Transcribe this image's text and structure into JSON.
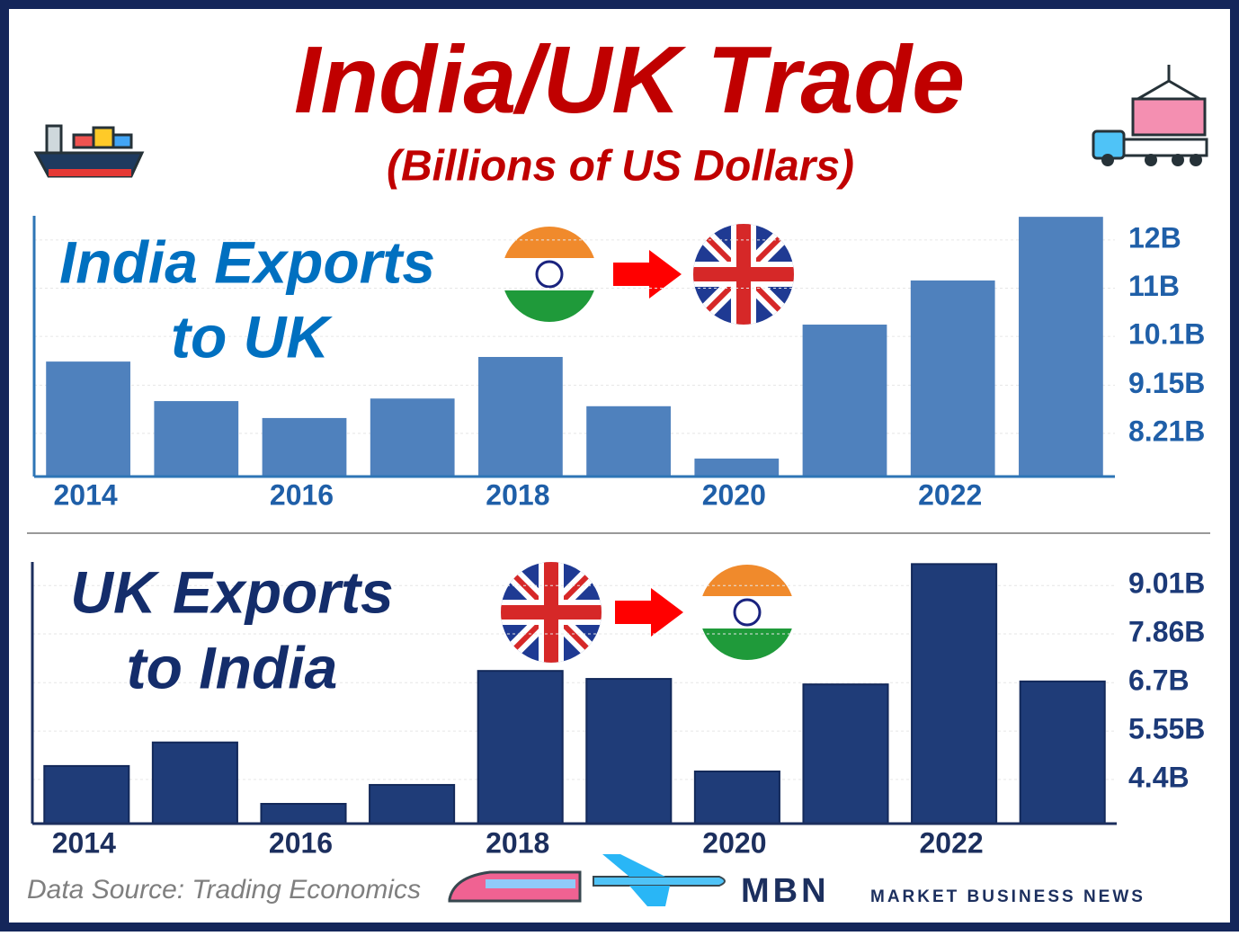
{
  "title": "India/UK Trade",
  "subtitle": "(Billions of US Dollars)",
  "chart_data": [
    {
      "type": "bar",
      "title_lines": [
        "India Exports",
        "to UK"
      ],
      "categories": [
        "2014",
        null,
        "2016",
        null,
        "2018",
        null,
        "2020",
        null,
        "2022",
        null
      ],
      "values": [
        9.61,
        8.84,
        8.51,
        8.89,
        9.7,
        8.74,
        7.72,
        10.33,
        11.19,
        12.43
      ],
      "color": "#4f81bd",
      "ylim": [
        7.37,
        12.45
      ],
      "yticks": [
        {
          "value": 8.21,
          "label": "8.21B"
        },
        {
          "value": 9.15,
          "label": "9.15B"
        },
        {
          "value": 10.1,
          "label": "10.1B"
        },
        {
          "value": 11.04,
          "label": "11B"
        },
        {
          "value": 11.98,
          "label": "12B"
        }
      ],
      "grid": true
    },
    {
      "type": "bar",
      "title_lines": [
        "UK Exports",
        "to India"
      ],
      "categories": [
        "2014",
        null,
        "2016",
        null,
        "2018",
        null,
        "2020",
        null,
        "2022",
        null
      ],
      "values": [
        4.72,
        5.28,
        3.82,
        4.27,
        6.98,
        6.79,
        4.59,
        6.66,
        9.52,
        6.73
      ],
      "color": "#1f3c78",
      "ylim": [
        3.35,
        9.57
      ],
      "yticks": [
        {
          "value": 4.4,
          "label": "4.4B"
        },
        {
          "value": 5.55,
          "label": "5.55B"
        },
        {
          "value": 6.7,
          "label": "6.7B"
        },
        {
          "value": 7.86,
          "label": "7.86B"
        },
        {
          "value": 9.01,
          "label": "9.01B"
        }
      ],
      "grid": true
    }
  ],
  "source": "Data Source: Trading Economics",
  "brand": "MBN",
  "brand_tagline": "MARKET BUSINESS NEWS"
}
